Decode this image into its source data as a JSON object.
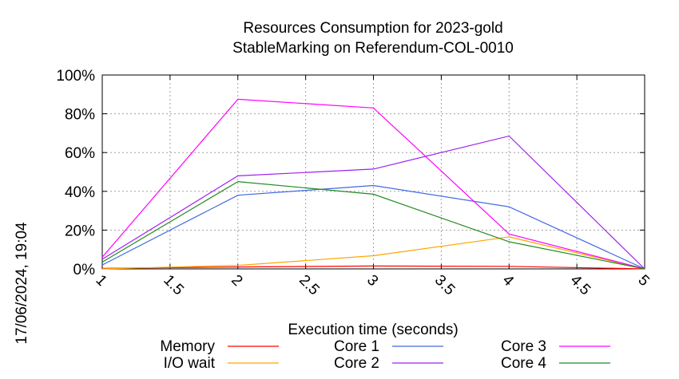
{
  "chart_data": {
    "type": "line",
    "title_lines": [
      "Resources Consumption for 2023-gold",
      "StableMarking on Referendum-COL-0010"
    ],
    "xlabel": "Execution time (seconds)",
    "ylabel": "",
    "side_label": "17/06/2024, 19:04",
    "xlim": [
      1,
      5
    ],
    "ylim": [
      0,
      100
    ],
    "x_ticks": [
      1,
      1.5,
      2,
      2.5,
      3,
      3.5,
      4,
      4.5,
      5
    ],
    "x_tick_labels": [
      "1",
      "1.5",
      "2",
      "2.5",
      "3",
      "3.5",
      "4",
      "4.5",
      "5"
    ],
    "y_ticks": [
      0,
      20,
      40,
      60,
      80,
      100
    ],
    "y_tick_labels": [
      "0%",
      "20%",
      "40%",
      "60%",
      "80%",
      "100%"
    ],
    "grid": true,
    "legend_position": "bottom",
    "x": [
      1,
      2,
      3,
      4,
      5
    ],
    "series": [
      {
        "name": "Memory",
        "color": "#ff0000",
        "values": [
          0.3,
          1.0,
          1.5,
          1.3,
          0
        ]
      },
      {
        "name": "I/O wait",
        "color": "#ffa500",
        "values": [
          0,
          1.8,
          6.8,
          16.5,
          0
        ]
      },
      {
        "name": "Core 1",
        "color": "#4169e1",
        "values": [
          2,
          38,
          43,
          32,
          0
        ]
      },
      {
        "name": "Core 2",
        "color": "#a020f0",
        "values": [
          5,
          48,
          51.5,
          68.5,
          0
        ]
      },
      {
        "name": "Core 3",
        "color": "#ff00ff",
        "values": [
          6,
          87.5,
          83,
          18,
          0
        ]
      },
      {
        "name": "Core 4",
        "color": "#228b22",
        "values": [
          3.5,
          45,
          38.5,
          14,
          0
        ]
      }
    ],
    "legend_columns": [
      [
        "Memory",
        "I/O wait"
      ],
      [
        "Core 1",
        "Core 2"
      ],
      [
        "Core 3",
        "Core 4"
      ]
    ]
  }
}
